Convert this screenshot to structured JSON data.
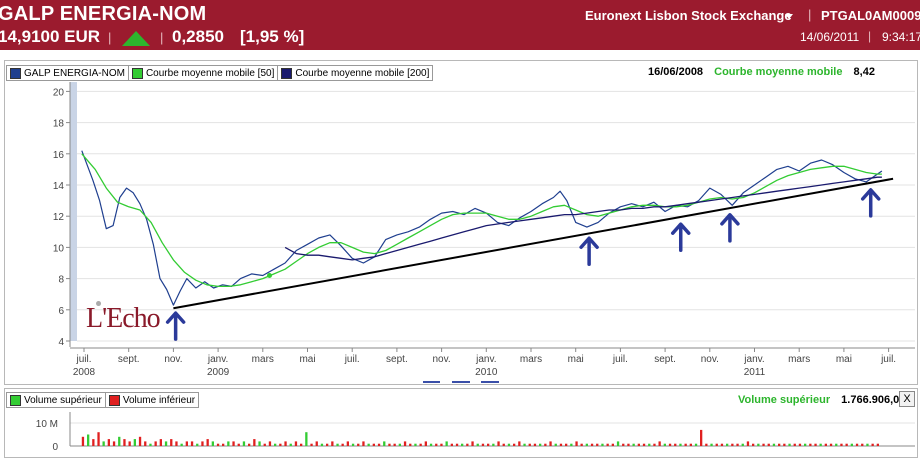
{
  "header": {
    "title": "GALP ENERGIA-NOM",
    "price": "14,9100 EUR",
    "change": "0,2850",
    "change_pct": "[1,95 %]",
    "exchange": "Euronext Lisbon Stock Exchange",
    "isin": "PTGAL0AM0009",
    "date": "14/06/2011",
    "time": "9:34:17",
    "up_color": "#2db52d"
  },
  "legend": {
    "items": [
      {
        "label": "GALP ENERGIA-NOM",
        "color": "#1f3f8f"
      },
      {
        "label": "Courbe moyenne mobile  [50]",
        "color": "#33cc33"
      },
      {
        "label": "Courbe moyenne mobile  [200]",
        "color": "#1a1a6e"
      }
    ]
  },
  "info": {
    "date": "16/06/2008",
    "label": "Courbe moyenne mobile",
    "value": "8,42"
  },
  "logo": {
    "text": "L'Echo"
  },
  "chart_data": {
    "type": "line",
    "ylim": [
      4,
      20
    ],
    "yticks": [
      4,
      6,
      8,
      10,
      12,
      14,
      16,
      18,
      20
    ],
    "xticks": [
      {
        "label": "juil.",
        "year": "2008",
        "t": 0
      },
      {
        "label": "sept.",
        "year": "",
        "t": 2
      },
      {
        "label": "nov.",
        "year": "",
        "t": 4
      },
      {
        "label": "janv.",
        "year": "2009",
        "t": 6
      },
      {
        "label": "mars",
        "year": "",
        "t": 8
      },
      {
        "label": "mai",
        "year": "",
        "t": 10
      },
      {
        "label": "juil.",
        "year": "",
        "t": 12
      },
      {
        "label": "sept.",
        "year": "",
        "t": 14
      },
      {
        "label": "nov.",
        "year": "",
        "t": 16
      },
      {
        "label": "janv.",
        "year": "2010",
        "t": 18
      },
      {
        "label": "mars",
        "year": "",
        "t": 20
      },
      {
        "label": "mai",
        "year": "",
        "t": 22
      },
      {
        "label": "juil.",
        "year": "",
        "t": 24
      },
      {
        "label": "sept.",
        "year": "",
        "t": 26
      },
      {
        "label": "nov.",
        "year": "",
        "t": 28
      },
      {
        "label": "janv.",
        "year": "2011",
        "t": 30
      },
      {
        "label": "mars",
        "year": "",
        "t": 32
      },
      {
        "label": "mai",
        "year": "",
        "t": 34
      },
      {
        "label": "juil.",
        "year": "",
        "t": 36
      }
    ],
    "series": [
      {
        "name": "GALP ENERGIA-NOM",
        "color": "#1f3f8f",
        "points": [
          [
            -0.1,
            16.2
          ],
          [
            0.4,
            14.3
          ],
          [
            0.7,
            13.0
          ],
          [
            1.0,
            11.2
          ],
          [
            1.3,
            11.4
          ],
          [
            1.6,
            13.2
          ],
          [
            1.9,
            13.8
          ],
          [
            2.2,
            13.5
          ],
          [
            2.5,
            12.8
          ],
          [
            2.8,
            11.8
          ],
          [
            3.1,
            10.2
          ],
          [
            3.4,
            8.0
          ],
          [
            3.7,
            7.3
          ],
          [
            4.0,
            6.3
          ],
          [
            4.3,
            7.2
          ],
          [
            4.6,
            8.0
          ],
          [
            5.0,
            7.4
          ],
          [
            5.4,
            7.8
          ],
          [
            5.8,
            7.4
          ],
          [
            6.2,
            7.6
          ],
          [
            6.6,
            7.5
          ],
          [
            7.0,
            8.0
          ],
          [
            7.5,
            8.3
          ],
          [
            8.0,
            8.2
          ],
          [
            8.5,
            8.6
          ],
          [
            9.0,
            9.0
          ],
          [
            9.5,
            9.8
          ],
          [
            10.0,
            10.2
          ],
          [
            10.5,
            10.6
          ],
          [
            11.0,
            10.8
          ],
          [
            11.5,
            10.1
          ],
          [
            12.0,
            9.3
          ],
          [
            12.5,
            9.0
          ],
          [
            13.0,
            9.4
          ],
          [
            13.5,
            10.5
          ],
          [
            14.0,
            10.8
          ],
          [
            14.5,
            11.0
          ],
          [
            15.0,
            11.3
          ],
          [
            15.5,
            11.8
          ],
          [
            16.0,
            12.2
          ],
          [
            16.5,
            12.3
          ],
          [
            17.0,
            12.1
          ],
          [
            17.5,
            12.5
          ],
          [
            18.0,
            12.2
          ],
          [
            18.5,
            11.6
          ],
          [
            19.0,
            11.4
          ],
          [
            19.5,
            11.9
          ],
          [
            20.0,
            12.3
          ],
          [
            20.5,
            12.8
          ],
          [
            21.0,
            13.2
          ],
          [
            21.3,
            13.6
          ],
          [
            21.6,
            13.0
          ],
          [
            22.0,
            11.6
          ],
          [
            22.5,
            11.3
          ],
          [
            23.0,
            11.6
          ],
          [
            23.5,
            12.2
          ],
          [
            24.0,
            12.6
          ],
          [
            24.5,
            12.8
          ],
          [
            25.0,
            12.6
          ],
          [
            25.5,
            12.9
          ],
          [
            26.0,
            12.3
          ],
          [
            26.5,
            12.7
          ],
          [
            27.0,
            12.6
          ],
          [
            27.5,
            13.0
          ],
          [
            28.0,
            13.8
          ],
          [
            28.5,
            13.4
          ],
          [
            29.0,
            12.7
          ],
          [
            29.5,
            13.5
          ],
          [
            30.0,
            14.0
          ],
          [
            30.5,
            14.5
          ],
          [
            31.0,
            15.0
          ],
          [
            31.5,
            15.2
          ],
          [
            32.0,
            14.9
          ],
          [
            32.5,
            15.4
          ],
          [
            33.0,
            15.6
          ],
          [
            33.5,
            15.3
          ],
          [
            34.0,
            14.8
          ],
          [
            34.5,
            14.4
          ],
          [
            35.0,
            14.2
          ],
          [
            35.4,
            14.6
          ],
          [
            35.7,
            14.9
          ]
        ]
      },
      {
        "name": "Courbe moyenne mobile  [50]",
        "color": "#33cc33",
        "points": [
          [
            -0.1,
            16.0
          ],
          [
            0.5,
            15.0
          ],
          [
            1.0,
            13.8
          ],
          [
            1.5,
            12.9
          ],
          [
            2.0,
            12.6
          ],
          [
            2.5,
            12.4
          ],
          [
            3.0,
            11.6
          ],
          [
            3.5,
            10.3
          ],
          [
            4.0,
            9.2
          ],
          [
            4.5,
            8.4
          ],
          [
            5.0,
            7.9
          ],
          [
            5.5,
            7.6
          ],
          [
            6.0,
            7.5
          ],
          [
            6.5,
            7.5
          ],
          [
            7.0,
            7.6
          ],
          [
            7.5,
            7.8
          ],
          [
            8.0,
            8.0
          ],
          [
            8.5,
            8.3
          ],
          [
            9.0,
            8.6
          ],
          [
            9.5,
            9.1
          ],
          [
            10.0,
            9.6
          ],
          [
            10.5,
            10.0
          ],
          [
            11.0,
            10.3
          ],
          [
            11.5,
            10.3
          ],
          [
            12.0,
            10.0
          ],
          [
            12.5,
            9.7
          ],
          [
            13.0,
            9.6
          ],
          [
            13.5,
            9.8
          ],
          [
            14.0,
            10.2
          ],
          [
            14.5,
            10.6
          ],
          [
            15.0,
            11.0
          ],
          [
            15.5,
            11.4
          ],
          [
            16.0,
            11.8
          ],
          [
            16.5,
            12.1
          ],
          [
            17.0,
            12.2
          ],
          [
            17.5,
            12.2
          ],
          [
            18.0,
            12.2
          ],
          [
            18.5,
            12.0
          ],
          [
            19.0,
            11.8
          ],
          [
            19.5,
            11.8
          ],
          [
            20.0,
            12.0
          ],
          [
            20.5,
            12.3
          ],
          [
            21.0,
            12.6
          ],
          [
            21.5,
            12.7
          ],
          [
            22.0,
            12.4
          ],
          [
            22.5,
            12.1
          ],
          [
            23.0,
            12.0
          ],
          [
            23.5,
            12.2
          ],
          [
            24.0,
            12.4
          ],
          [
            24.5,
            12.6
          ],
          [
            25.0,
            12.7
          ],
          [
            25.5,
            12.7
          ],
          [
            26.0,
            12.6
          ],
          [
            26.5,
            12.6
          ],
          [
            27.0,
            12.7
          ],
          [
            27.5,
            12.9
          ],
          [
            28.0,
            13.1
          ],
          [
            28.5,
            13.2
          ],
          [
            29.0,
            13.1
          ],
          [
            29.5,
            13.2
          ],
          [
            30.0,
            13.5
          ],
          [
            30.5,
            13.9
          ],
          [
            31.0,
            14.3
          ],
          [
            31.5,
            14.6
          ],
          [
            32.0,
            14.8
          ],
          [
            32.5,
            15.0
          ],
          [
            33.0,
            15.1
          ],
          [
            33.5,
            15.2
          ],
          [
            34.0,
            15.2
          ],
          [
            34.5,
            15.0
          ],
          [
            35.0,
            14.8
          ],
          [
            35.5,
            14.7
          ],
          [
            35.7,
            14.7
          ]
        ]
      },
      {
        "name": "Courbe moyenne mobile  [200]",
        "color": "#1a1a6e",
        "points": [
          [
            9.0,
            10.0
          ],
          [
            9.5,
            9.6
          ],
          [
            10.0,
            9.5
          ],
          [
            10.5,
            9.5
          ],
          [
            11.0,
            9.4
          ],
          [
            11.5,
            9.3
          ],
          [
            12.0,
            9.2
          ],
          [
            12.5,
            9.3
          ],
          [
            13.0,
            9.4
          ],
          [
            13.5,
            9.6
          ],
          [
            14.0,
            9.8
          ],
          [
            14.5,
            10.0
          ],
          [
            15.0,
            10.2
          ],
          [
            15.5,
            10.4
          ],
          [
            16.0,
            10.6
          ],
          [
            16.5,
            10.8
          ],
          [
            17.0,
            11.0
          ],
          [
            17.5,
            11.2
          ],
          [
            18.0,
            11.4
          ],
          [
            18.5,
            11.5
          ],
          [
            19.0,
            11.6
          ],
          [
            19.5,
            11.7
          ],
          [
            20.0,
            11.8
          ],
          [
            20.5,
            11.9
          ],
          [
            21.0,
            12.0
          ],
          [
            21.5,
            12.1
          ],
          [
            22.0,
            12.1
          ],
          [
            22.5,
            12.2
          ],
          [
            23.0,
            12.3
          ],
          [
            23.5,
            12.4
          ],
          [
            24.0,
            12.4
          ],
          [
            24.5,
            12.5
          ],
          [
            25.0,
            12.5
          ],
          [
            25.5,
            12.6
          ],
          [
            26.0,
            12.6
          ],
          [
            26.5,
            12.7
          ],
          [
            27.0,
            12.8
          ],
          [
            27.5,
            12.9
          ],
          [
            28.0,
            13.0
          ],
          [
            28.5,
            13.1
          ],
          [
            29.0,
            13.2
          ],
          [
            29.5,
            13.3
          ],
          [
            30.0,
            13.4
          ],
          [
            30.5,
            13.5
          ],
          [
            31.0,
            13.6
          ],
          [
            31.5,
            13.7
          ],
          [
            32.0,
            13.8
          ],
          [
            32.5,
            13.9
          ],
          [
            33.0,
            14.0
          ],
          [
            33.5,
            14.1
          ],
          [
            34.0,
            14.2
          ],
          [
            34.5,
            14.3
          ],
          [
            35.0,
            14.4
          ],
          [
            35.5,
            14.5
          ],
          [
            35.7,
            14.5
          ]
        ]
      }
    ],
    "trendline": {
      "color": "#000000",
      "points": [
        [
          4.0,
          6.1
        ],
        [
          36.2,
          14.4
        ]
      ]
    },
    "markers": [
      {
        "t": 8.3,
        "v": 8.2,
        "color": "#33cc33"
      },
      {
        "t": 0.65,
        "v": 6.4,
        "color": "#aaaaaa"
      }
    ],
    "arrows": [
      {
        "t": 4.1,
        "v": 6.3
      },
      {
        "t": 22.6,
        "v": 11.1
      },
      {
        "t": 26.7,
        "v": 12.0
      },
      {
        "t": 28.9,
        "v": 12.6
      },
      {
        "t": 35.2,
        "v": 14.2
      }
    ],
    "grid": true
  },
  "volume": {
    "legend": [
      {
        "label": "Volume supérieur",
        "color": "#33cc33"
      },
      {
        "label": "Volume inférieur",
        "color": "#e02020"
      }
    ],
    "info_label": "Volume supérieur",
    "info_value": "1.766.906,00",
    "close_label": "X",
    "yticks": [
      "10 M",
      "0"
    ],
    "bars": [
      4,
      5,
      3,
      6,
      2,
      3,
      2,
      4,
      3,
      2,
      3,
      4,
      2,
      1,
      2,
      3,
      2,
      3,
      2,
      1,
      2,
      2,
      1,
      2,
      3,
      2,
      1,
      1,
      2,
      2,
      1,
      2,
      1,
      3,
      2,
      1,
      2,
      1,
      1,
      2,
      1,
      2,
      1,
      6,
      1,
      2,
      1,
      1,
      2,
      1,
      1,
      2,
      1,
      1,
      2,
      1,
      1,
      1,
      2,
      1,
      1,
      1,
      2,
      1,
      1,
      1,
      2,
      1,
      1,
      1,
      2,
      1,
      1,
      1,
      1,
      2,
      1,
      1,
      1,
      1,
      2,
      1,
      1,
      1,
      2,
      1,
      1,
      1,
      1,
      1,
      2,
      1,
      1,
      1,
      1,
      2,
      1,
      1,
      1,
      1,
      1,
      1,
      1,
      2,
      1,
      1,
      1,
      1,
      1,
      1,
      1,
      2,
      1,
      1,
      1,
      1,
      1,
      1,
      1,
      7,
      1,
      1,
      1,
      1,
      1,
      1,
      1,
      1,
      2,
      1,
      1,
      1,
      1,
      1,
      1,
      1,
      1,
      1,
      1,
      1,
      1,
      1,
      1,
      1,
      1,
      1,
      1,
      1,
      1,
      1,
      1,
      1,
      1,
      1
    ]
  }
}
